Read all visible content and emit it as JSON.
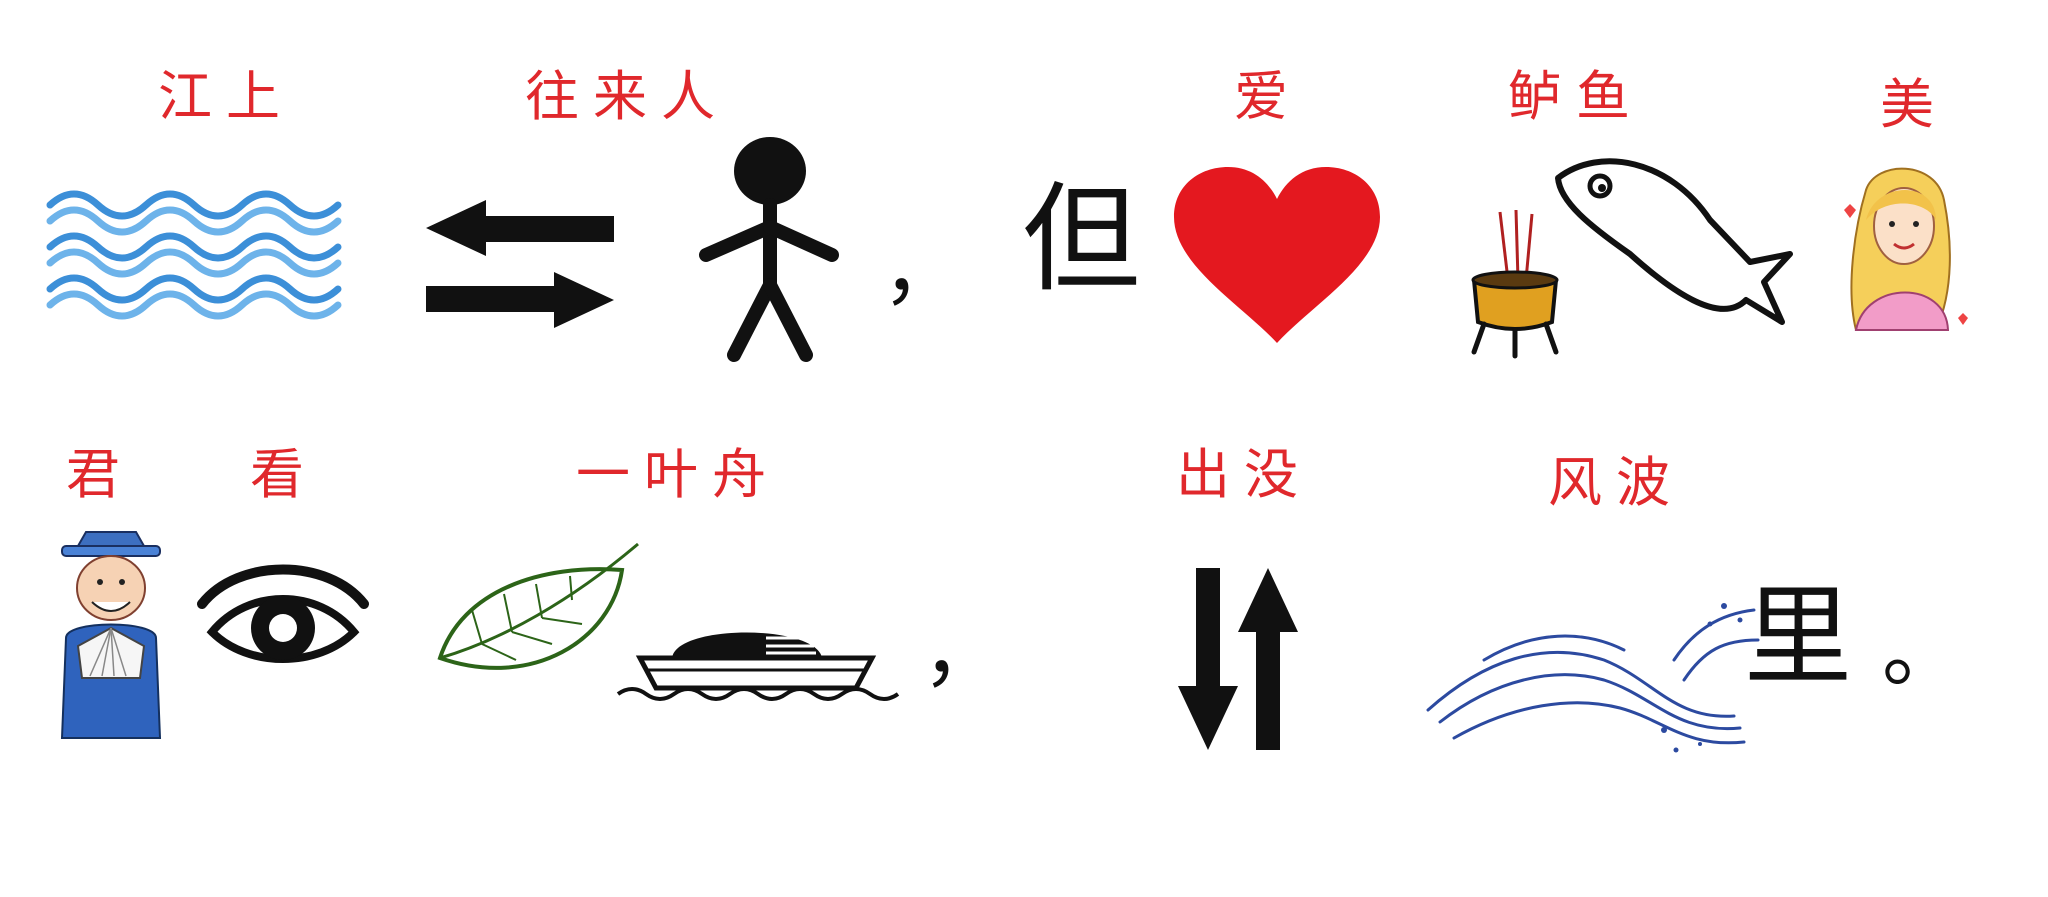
{
  "row1": {
    "label_jiangshang": "江上",
    "label_wanglairen": "往来人",
    "comma": "，",
    "dan": "但",
    "label_ai": "爱",
    "label_luyu": "鲈鱼",
    "label_mei": "美"
  },
  "row2": {
    "label_jun": "君",
    "label_kan": "看",
    "label_yiyezhou": "一叶舟",
    "comma": "，",
    "label_chumei": "出没",
    "label_fengbo": "风波",
    "li": "里",
    "period": "。"
  },
  "colors": {
    "label_red": "#e0282c",
    "water_blue": "#3c8fd8",
    "heart_red": "#e4181f",
    "ink_black": "#111111"
  },
  "icons": [
    "waves-icon",
    "exchange-arrows-icon",
    "stick-figure-icon",
    "heart-icon",
    "incense-burner-icon",
    "fish-icon",
    "beauty-girl-icon",
    "scholar-icon",
    "eye-icon",
    "leaf-icon",
    "boat-icon",
    "up-down-arrows-icon",
    "wave-splash-icon"
  ]
}
